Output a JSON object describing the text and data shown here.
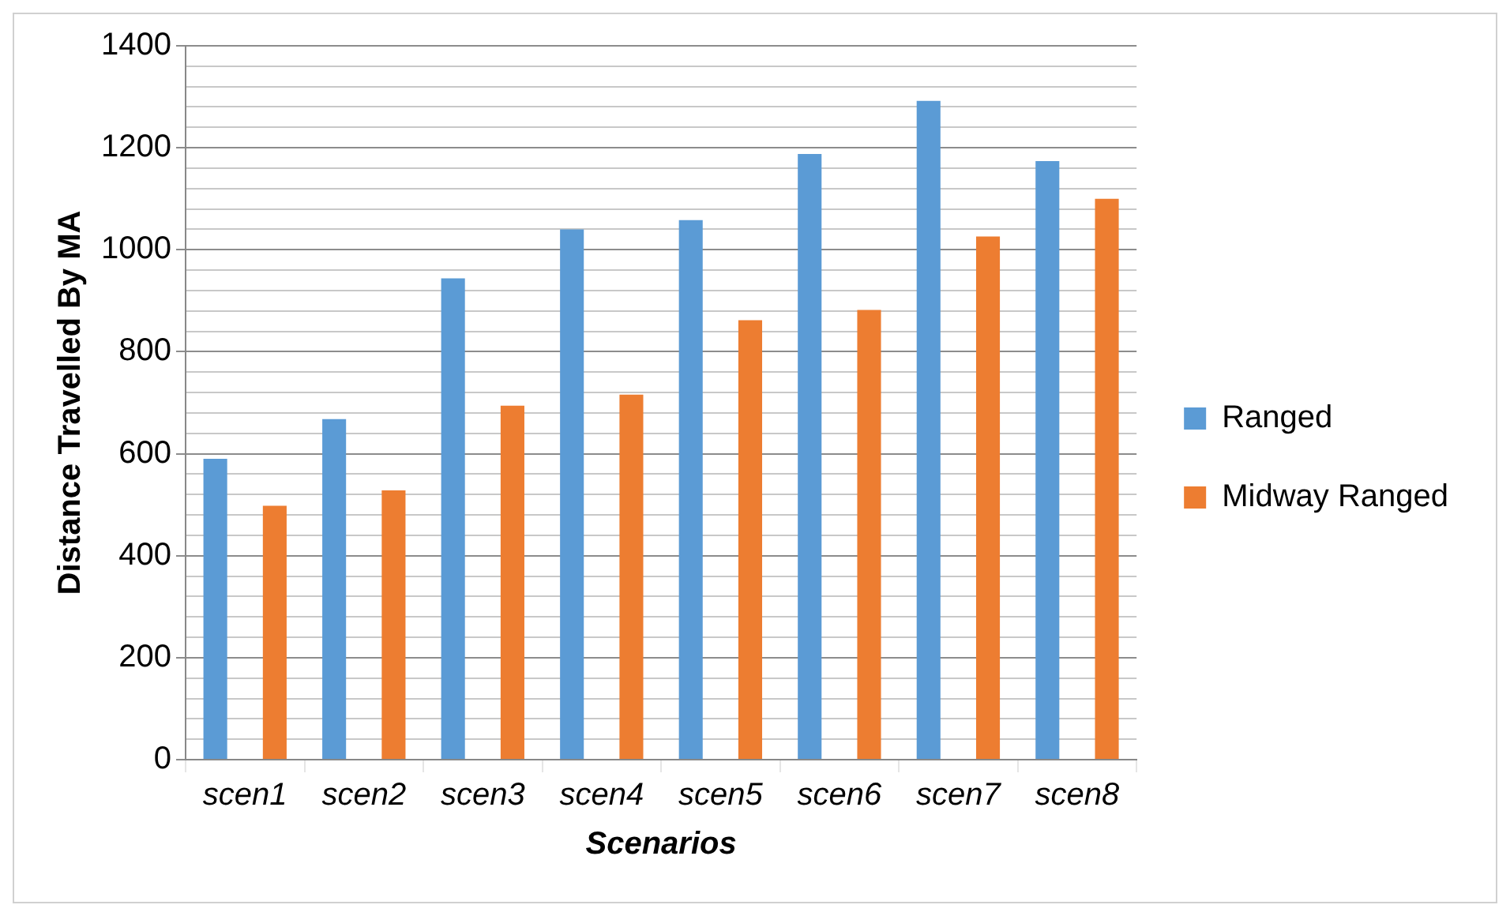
{
  "chart_data": {
    "type": "bar",
    "xlabel": "Scenarios",
    "ylabel": "Distance Travelled By MA",
    "categories": [
      "scen1",
      "scen2",
      "scen3",
      "scen4",
      "scen5",
      "scen6",
      "scen7",
      "scen8"
    ],
    "series": [
      {
        "name": "Ranged",
        "color": "#5b9bd5",
        "values": [
          590,
          668,
          944,
          1040,
          1058,
          1188,
          1292,
          1174
        ]
      },
      {
        "name": "Midway Ranged",
        "color": "#ed7d31",
        "values": [
          498,
          528,
          694,
          716,
          862,
          882,
          1026,
          1100
        ]
      }
    ],
    "ylim": [
      0,
      1400
    ],
    "yticks": [
      0,
      {
        "value": 40,
        "label": null
      },
      {
        "value": 80,
        "label": null
      },
      {
        "value": 120,
        "label": null
      },
      {
        "value": 160,
        "label": null
      },
      200,
      {
        "value": 240,
        "label": null
      },
      {
        "value": 280,
        "label": null
      },
      {
        "value": 320,
        "label": null
      },
      {
        "value": 360,
        "label": null
      },
      400,
      {
        "value": 440,
        "label": null
      },
      {
        "value": 480,
        "label": null
      },
      {
        "value": 520,
        "label": null
      },
      {
        "value": 560,
        "label": null
      },
      600,
      {
        "value": 640,
        "label": null
      },
      {
        "value": 680,
        "label": null
      },
      {
        "value": 720,
        "label": null
      },
      {
        "value": 760,
        "label": null
      },
      800,
      {
        "value": 840,
        "label": null
      },
      {
        "value": 880,
        "label": null
      },
      {
        "value": 920,
        "label": null
      },
      {
        "value": 960,
        "label": null
      },
      1000,
      {
        "value": 1040,
        "label": null
      },
      {
        "value": 1080,
        "label": null
      },
      {
        "value": 1120,
        "label": null
      },
      {
        "value": 1160,
        "label": null
      },
      1200,
      {
        "value": 1240,
        "label": null
      },
      {
        "value": 1280,
        "label": null
      },
      {
        "value": 1320,
        "label": null
      },
      {
        "value": 1360,
        "label": null
      },
      1400
    ],
    "grid": true,
    "legend": "right"
  }
}
